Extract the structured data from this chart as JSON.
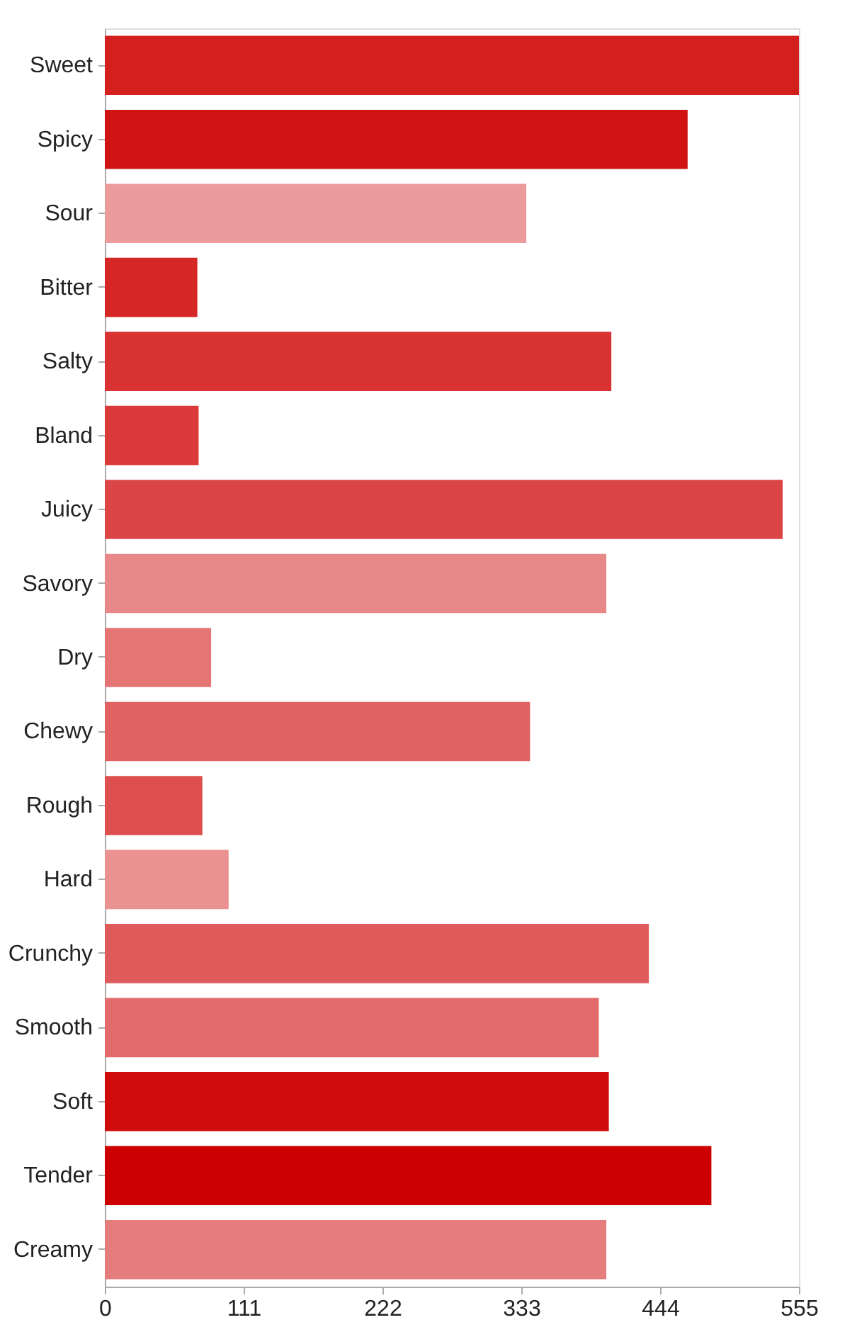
{
  "chart_data": {
    "type": "bar",
    "orientation": "horizontal",
    "categories": [
      "Sweet",
      "Spicy",
      "Sour",
      "Bitter",
      "Salty",
      "Bland",
      "Juicy",
      "Savory",
      "Dry",
      "Chewy",
      "Rough",
      "Hard",
      "Crunchy",
      "Smooth",
      "Soft",
      "Tender",
      "Creamy"
    ],
    "values": [
      555,
      466,
      337,
      74,
      405,
      75,
      542,
      401,
      85,
      340,
      78,
      99,
      435,
      395,
      403,
      485,
      401
    ],
    "colors": [
      "#d41f1f",
      "#d01414",
      "#eb9b9b",
      "#d62727",
      "#d83232",
      "#da3a3a",
      "#dc4545",
      "#e88888",
      "#e57575",
      "#e06262",
      "#dd4f4f",
      "#ea9191",
      "#df5a5a",
      "#e36b6b",
      "#d00d0d",
      "#cc0000",
      "#e67d7d"
    ],
    "xlim": [
      0,
      555
    ],
    "xticks": [
      0,
      111,
      222,
      333,
      444,
      555
    ],
    "grid": false,
    "legend": false
  }
}
